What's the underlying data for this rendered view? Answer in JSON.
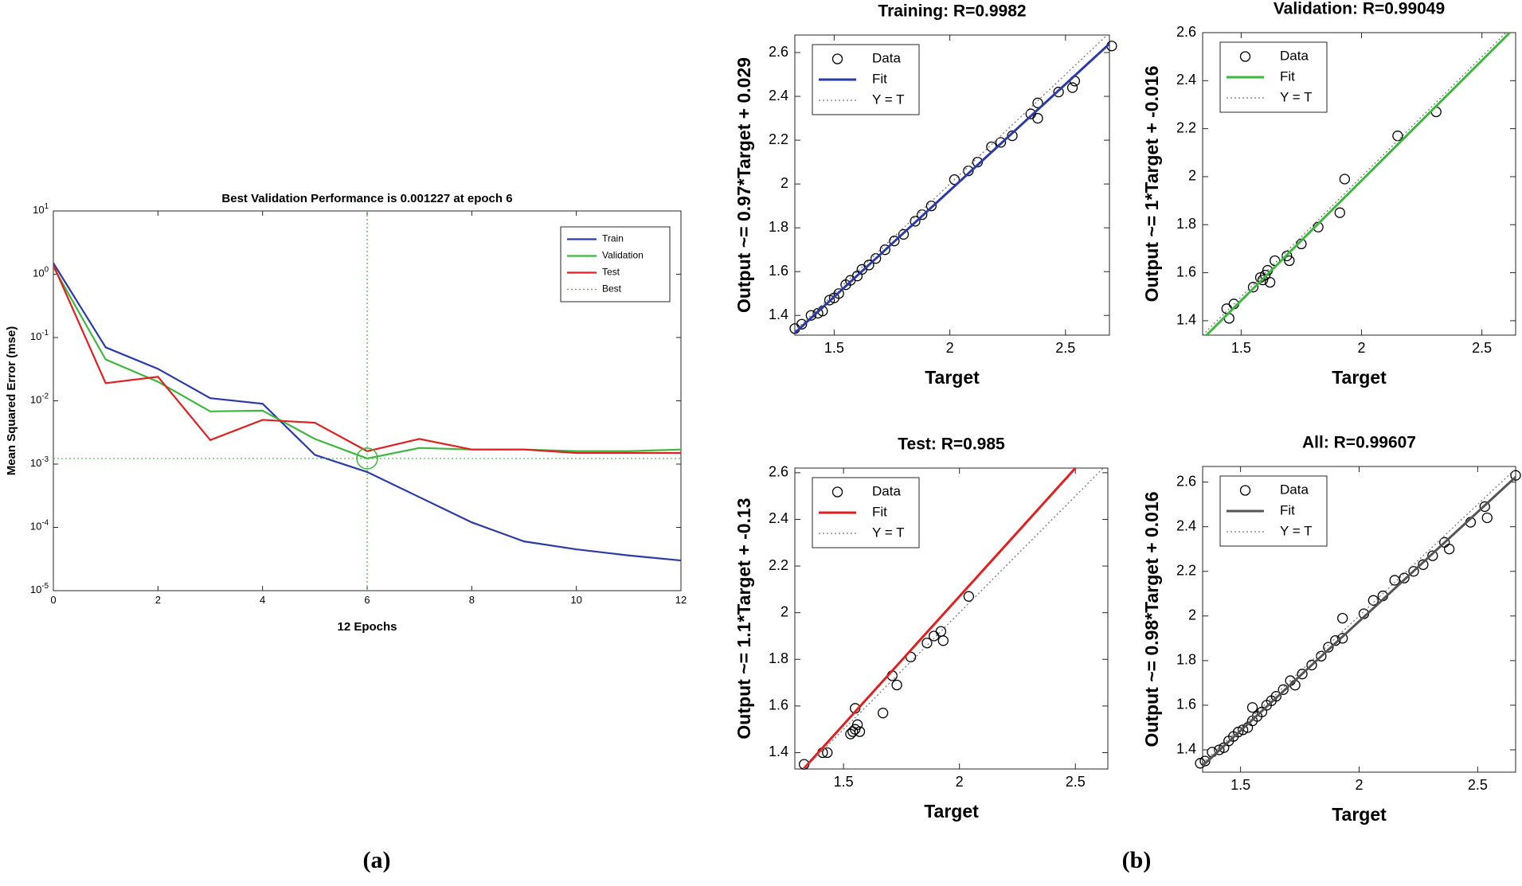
{
  "panel_labels": [
    "(a)",
    "(b)"
  ],
  "chart_data": [
    {
      "type": "line",
      "title": "Best Validation Performance is 0.001227 at epoch 6",
      "x_label": "12 Epochs",
      "y_label": "Mean Squared Error  (mse)",
      "x": [
        0,
        1,
        2,
        3,
        4,
        5,
        6,
        7,
        8,
        9,
        10,
        11,
        12
      ],
      "xlim": [
        0,
        12
      ],
      "xticks": [
        0,
        2,
        4,
        6,
        8,
        10,
        12
      ],
      "yscale": "log",
      "ylim": [
        1e-05,
        10
      ],
      "yticks": [
        {
          "value": 1e-05,
          "label": "10",
          "exponent": "-5"
        },
        {
          "value": 0.0001,
          "label": "10",
          "exponent": "-4"
        },
        {
          "value": 0.001,
          "label": "10",
          "exponent": "-3"
        },
        {
          "value": 0.01,
          "label": "10",
          "exponent": "-2"
        },
        {
          "value": 0.1,
          "label": "10",
          "exponent": "-1"
        },
        {
          "value": 1,
          "label": "10",
          "exponent": "0"
        },
        {
          "value": 10,
          "label": "10",
          "exponent": "1"
        }
      ],
      "legend": "upper right",
      "series": [
        {
          "name": "Train",
          "color": "#2b3aa8",
          "values": [
            1.5,
            0.07,
            0.032,
            0.011,
            0.009,
            0.0014,
            0.00075,
            0.0003,
            0.00012,
            6e-05,
            4.5e-05,
            3.6e-05,
            3e-05
          ]
        },
        {
          "name": "Validation",
          "color": "#3cb83c",
          "values": [
            1.3,
            0.045,
            0.02,
            0.0068,
            0.007,
            0.0025,
            0.001227,
            0.0018,
            0.0017,
            0.0017,
            0.0016,
            0.0016,
            0.0017
          ]
        },
        {
          "name": "Test",
          "color": "#e02020",
          "values": [
            1.4,
            0.019,
            0.024,
            0.0024,
            0.005,
            0.0045,
            0.0016,
            0.0025,
            0.0017,
            0.0017,
            0.0015,
            0.0015,
            0.0015
          ]
        },
        {
          "name": "Best",
          "color": "#3cb83c",
          "style": "dotted",
          "x": 6,
          "y": 0.001227
        }
      ]
    },
    {
      "type": "scatter",
      "title": "Training: R=0.9982",
      "x_label": "Target",
      "y_label": "Output ~= 0.97*Target + 0.029",
      "xlim": [
        1.33,
        2.69
      ],
      "ylim": [
        1.31,
        2.68
      ],
      "xticks": [
        1.5,
        2,
        2.5
      ],
      "yticks": [
        1.4,
        1.6,
        1.8,
        2,
        2.2,
        2.4,
        2.6
      ],
      "legend": "upper left",
      "series": [
        {
          "name": "Data",
          "color": "#000000",
          "marker": "circle",
          "x": [
            1.33,
            1.36,
            1.4,
            1.43,
            1.45,
            1.48,
            1.5,
            1.52,
            1.55,
            1.57,
            1.6,
            1.62,
            1.65,
            1.68,
            1.72,
            1.76,
            1.8,
            1.85,
            1.88,
            1.92,
            2.02,
            2.08,
            2.12,
            2.18,
            2.22,
            2.27,
            2.35,
            2.38,
            2.47,
            2.54,
            2.7,
            2.53,
            2.38
          ],
          "values": [
            1.34,
            1.36,
            1.4,
            1.41,
            1.42,
            1.47,
            1.48,
            1.5,
            1.54,
            1.56,
            1.58,
            1.61,
            1.63,
            1.66,
            1.7,
            1.74,
            1.77,
            1.83,
            1.86,
            1.9,
            2.02,
            2.06,
            2.1,
            2.17,
            2.19,
            2.22,
            2.32,
            2.37,
            2.42,
            2.47,
            2.63,
            2.44,
            2.3
          ]
        },
        {
          "name": "Fit",
          "color": "#2b3aa8",
          "style": "solid",
          "x": [
            1.33,
            2.69
          ],
          "values": [
            1.32,
            2.64
          ]
        },
        {
          "name": "Y = T",
          "color": "#777777",
          "style": "dotted",
          "x": [
            1.33,
            2.68
          ],
          "values": [
            1.33,
            2.68
          ]
        }
      ]
    },
    {
      "type": "scatter",
      "title": "Validation: R=0.99049",
      "x_label": "Target",
      "y_label": "Output ~= 1*Target + -0.016",
      "xlim": [
        1.34,
        2.64
      ],
      "ylim": [
        1.34,
        2.6
      ],
      "xticks": [
        1.5,
        2,
        2.5
      ],
      "yticks": [
        1.4,
        1.6,
        1.8,
        2,
        2.2,
        2.4,
        2.6
      ],
      "legend": "upper left",
      "series": [
        {
          "name": "Data",
          "color": "#000000",
          "marker": "circle",
          "x": [
            1.44,
            1.45,
            1.47,
            1.55,
            1.58,
            1.59,
            1.6,
            1.61,
            1.62,
            1.64,
            1.69,
            1.7,
            1.75,
            1.82,
            1.91,
            1.93,
            2.15,
            2.31
          ],
          "values": [
            1.45,
            1.41,
            1.47,
            1.54,
            1.58,
            1.57,
            1.59,
            1.61,
            1.56,
            1.65,
            1.67,
            1.65,
            1.72,
            1.79,
            1.85,
            1.99,
            2.17,
            2.27
          ]
        },
        {
          "name": "Fit",
          "color": "#3cb83c",
          "style": "solid",
          "x": [
            1.356,
            2.616
          ],
          "values": [
            1.34,
            2.6
          ]
        },
        {
          "name": "Y = T",
          "color": "#777777",
          "style": "dotted",
          "x": [
            1.34,
            2.6
          ],
          "values": [
            1.34,
            2.6
          ]
        }
      ]
    },
    {
      "type": "scatter",
      "title": "Test: R=0.985",
      "x_label": "Target",
      "y_label": "Output ~= 1.1*Target + -0.13",
      "xlim": [
        1.29,
        2.64
      ],
      "ylim": [
        1.33,
        2.62
      ],
      "xticks": [
        1.5,
        2,
        2.5
      ],
      "yticks": [
        1.4,
        1.6,
        1.8,
        2,
        2.2,
        2.4,
        2.6
      ],
      "legend": "upper left",
      "series": [
        {
          "name": "Data",
          "color": "#000000",
          "marker": "circle",
          "x": [
            1.33,
            1.41,
            1.43,
            1.53,
            1.54,
            1.55,
            1.56,
            1.55,
            1.57,
            1.67,
            1.71,
            1.73,
            1.79,
            1.86,
            1.89,
            1.92,
            1.93,
            2.04
          ],
          "values": [
            1.35,
            1.4,
            1.4,
            1.48,
            1.49,
            1.5,
            1.52,
            1.59,
            1.49,
            1.57,
            1.73,
            1.69,
            1.81,
            1.87,
            1.9,
            1.92,
            1.88,
            2.07
          ]
        },
        {
          "name": "Fit",
          "color": "#e02020",
          "style": "solid",
          "x": [
            1.327,
            2.5
          ],
          "values": [
            1.33,
            2.62
          ]
        },
        {
          "name": "Y = T",
          "color": "#777777",
          "style": "dotted",
          "x": [
            1.33,
            2.62
          ],
          "values": [
            1.33,
            2.62
          ]
        }
      ]
    },
    {
      "type": "scatter",
      "title": "All: R=0.99607",
      "x_label": "Target",
      "y_label": "Output ~= 0.98*Target + 0.016",
      "xlim": [
        1.34,
        2.66
      ],
      "ylim": [
        1.3,
        2.67
      ],
      "xticks": [
        1.5,
        2,
        2.5
      ],
      "yticks": [
        1.4,
        1.6,
        1.8,
        2,
        2.2,
        2.4,
        2.6
      ],
      "legend": "upper left",
      "series": [
        {
          "name": "Data",
          "color": "#000000",
          "marker": "circle",
          "x": [
            1.33,
            1.35,
            1.38,
            1.41,
            1.43,
            1.45,
            1.47,
            1.49,
            1.51,
            1.53,
            1.55,
            1.55,
            1.57,
            1.59,
            1.61,
            1.63,
            1.65,
            1.68,
            1.71,
            1.73,
            1.76,
            1.8,
            1.84,
            1.87,
            1.9,
            1.93,
            1.93,
            2.02,
            2.06,
            2.1,
            2.15,
            2.19,
            2.23,
            2.27,
            2.31,
            2.36,
            2.38,
            2.47,
            2.53,
            2.54,
            2.66
          ],
          "values": [
            1.34,
            1.35,
            1.39,
            1.4,
            1.41,
            1.44,
            1.46,
            1.48,
            1.49,
            1.5,
            1.53,
            1.59,
            1.55,
            1.57,
            1.6,
            1.62,
            1.64,
            1.67,
            1.71,
            1.69,
            1.74,
            1.78,
            1.82,
            1.86,
            1.89,
            1.99,
            1.9,
            2.01,
            2.07,
            2.09,
            2.16,
            2.17,
            2.2,
            2.23,
            2.27,
            2.33,
            2.3,
            2.42,
            2.49,
            2.44,
            2.63
          ]
        },
        {
          "name": "Fit",
          "color": "#555555",
          "style": "solid",
          "x": [
            1.34,
            2.66
          ],
          "values": [
            1.329,
            2.623
          ]
        },
        {
          "name": "Y = T",
          "color": "#777777",
          "style": "dotted",
          "x": [
            1.34,
            2.66
          ],
          "values": [
            1.34,
            2.66
          ]
        }
      ]
    }
  ]
}
